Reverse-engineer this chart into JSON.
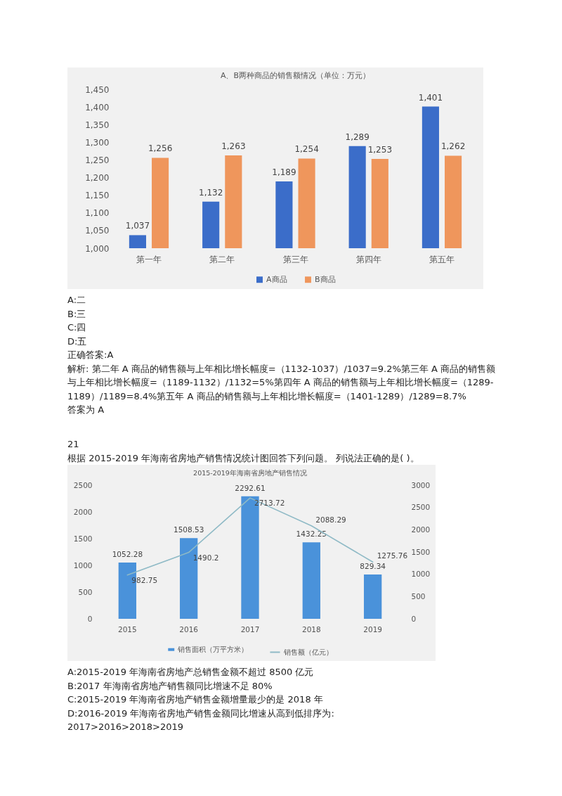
{
  "chart_data": [
    {
      "type": "bar",
      "title": "A、B两种商品的销售额情况（单位：万元）",
      "categories": [
        "第一年",
        "第二年",
        "第三年",
        "第四年",
        "第五年"
      ],
      "series": [
        {
          "name": "A商品",
          "color": "#3b6dc9",
          "values": [
            1037,
            1132,
            1189,
            1289,
            1401
          ],
          "value_labels": [
            "1,037",
            "1,132",
            "1,189",
            "1,289",
            "1,401"
          ]
        },
        {
          "name": "B商品",
          "color": "#ef965c",
          "values": [
            1256,
            1263,
            1254,
            1253,
            1262
          ],
          "value_labels": [
            "1,256",
            "1,263",
            "1,254",
            "1,253",
            "1,262"
          ]
        }
      ],
      "ylim": [
        1000,
        1450
      ],
      "yticks": [
        {
          "value": 1000,
          "label": "1,000"
        },
        {
          "value": 1050,
          "label": "1,050"
        },
        {
          "value": 1100,
          "label": "1,100"
        },
        {
          "value": 1150,
          "label": "1,150"
        },
        {
          "value": 1200,
          "label": "1,200"
        },
        {
          "value": 1250,
          "label": "1,250"
        },
        {
          "value": 1300,
          "label": "1,300"
        },
        {
          "value": 1350,
          "label": "1,350"
        },
        {
          "value": 1400,
          "label": "1,400"
        },
        {
          "value": 1450,
          "label": "1,450"
        }
      ],
      "legend": "bottom",
      "annotations": [
        "A:二",
        "B:三",
        "C:四",
        "D:五",
        "正确答案:A",
        "解析: 第二年 A 商品的销售额与上年相比增长幅度=（1132-1037）/1037=9.2%第三年 A 商品的销售额与上年相比增长幅度=（1189-1132）/1132=5%第四年 A 商品的销售额与上年相比增长幅度=（1289-1189）/1189=8.4%第五年 A 商品的销售额与上年相比增长幅度=（1401-1289）/1289=8.7%",
        "答案为 A"
      ]
    },
    {
      "type": "bar",
      "title": "2015-2019年海南省房地产销售情况",
      "subtitle": "21\n根据 2015-2019 年海南省房地产销售情况统计图回答下列问题。 列说法正确的是( )。",
      "categories": [
        "2015",
        "2016",
        "2017",
        "2018",
        "2019"
      ],
      "series": [
        {
          "name": "销售面积（万平方米）",
          "color": "#4a92da",
          "values": [
            1052.28,
            1508.53,
            2292.61,
            1432.25,
            829.34
          ]
        },
        {
          "name": "销售额（亿元）",
          "type": "line",
          "axis": "y2",
          "color": "#8fbac6",
          "values": [
            982.75,
            1490.2,
            2713.72,
            2088.29,
            1275.76
          ]
        }
      ],
      "ylim": [
        0,
        2500
      ],
      "yticks": [
        0,
        500,
        1000,
        1500,
        2000,
        2500
      ],
      "y2lim": [
        0,
        3000
      ],
      "y2ticks": [
        0,
        500,
        1000,
        1500,
        2000,
        2500,
        3000
      ],
      "data_labels": true,
      "legend": "bottom",
      "annotations": [
        "A:2015-2019 年海南省房地产总销售金额不超过 8500 亿元",
        "B:2017 年海南省房地产销售额同比增速不足 80%",
        "C:2015-2019 年海南省房地产销售金额增量最少的是 2018 年",
        "D:2016-2019 年海南省房地产销售金额同比增速从高到低排序为:\n2017>2016>2018>2019"
      ]
    }
  ]
}
